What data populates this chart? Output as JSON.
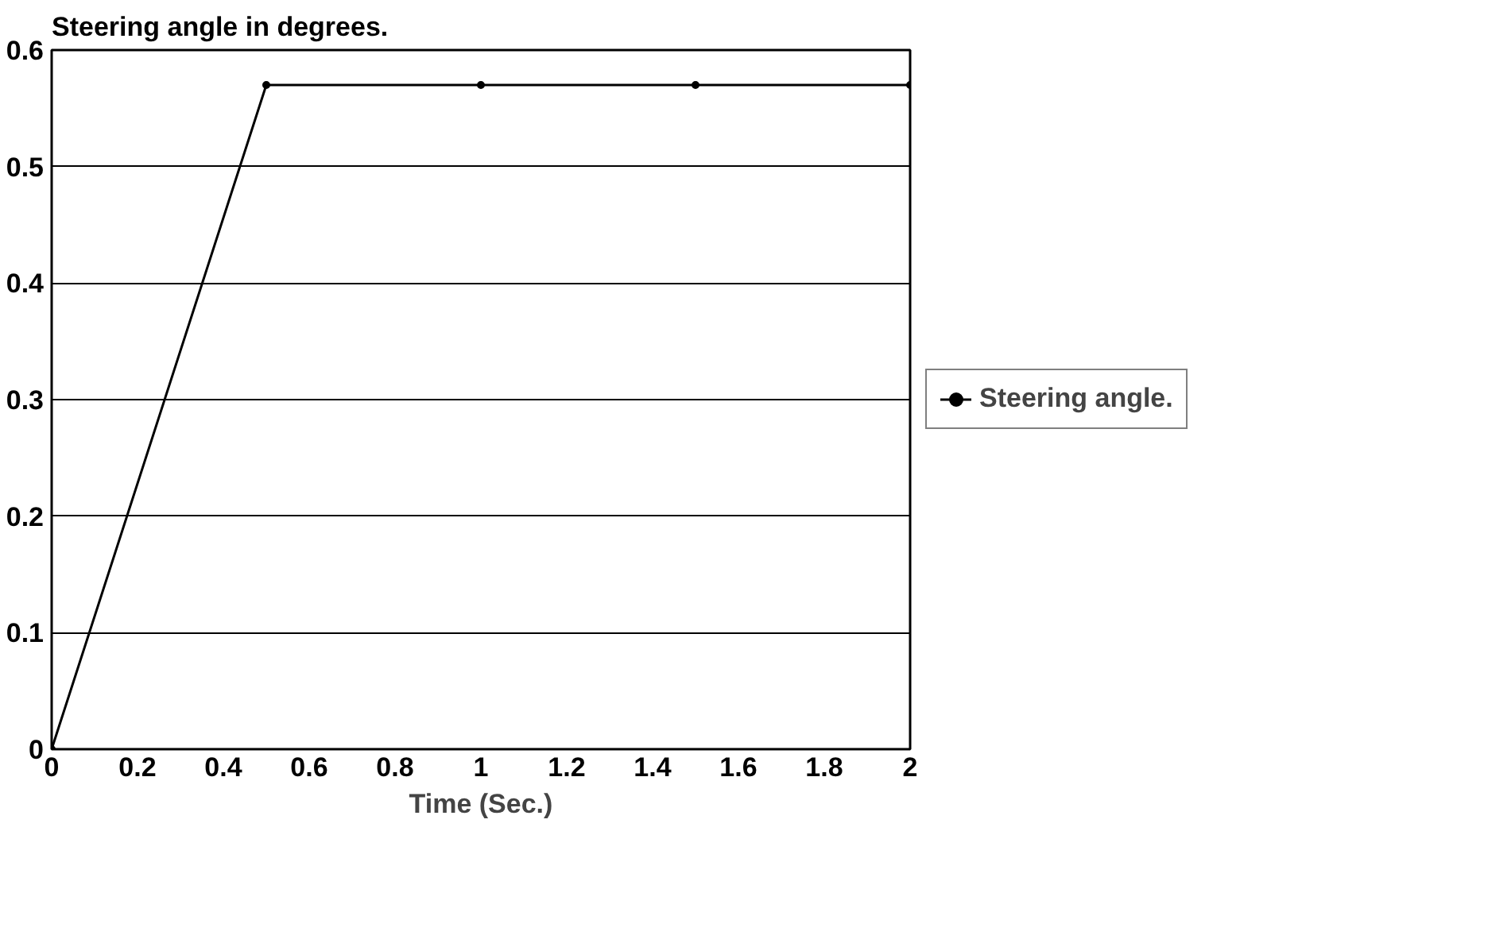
{
  "chart_data": {
    "type": "line",
    "title": "Steering angle in degrees.",
    "xlabel": "Time (Sec.)",
    "x": [
      0,
      0.5,
      1,
      1.5,
      2
    ],
    "series": [
      {
        "name": "Steering angle.",
        "color": "#000000",
        "values": [
          0,
          0.57,
          0.57,
          0.57,
          0.57
        ]
      }
    ],
    "xlim": [
      0,
      2
    ],
    "xticks": [
      0,
      0.2,
      0.4,
      0.6,
      0.8,
      1,
      1.2,
      1.4,
      1.6,
      1.8,
      2
    ],
    "ylim": [
      0,
      0.6
    ],
    "yticks": [
      0,
      0.1,
      0.2,
      0.3,
      0.4,
      0.5,
      0.6
    ],
    "grid": "y",
    "legend": "right",
    "marker": "circle",
    "line_style": "solid"
  }
}
